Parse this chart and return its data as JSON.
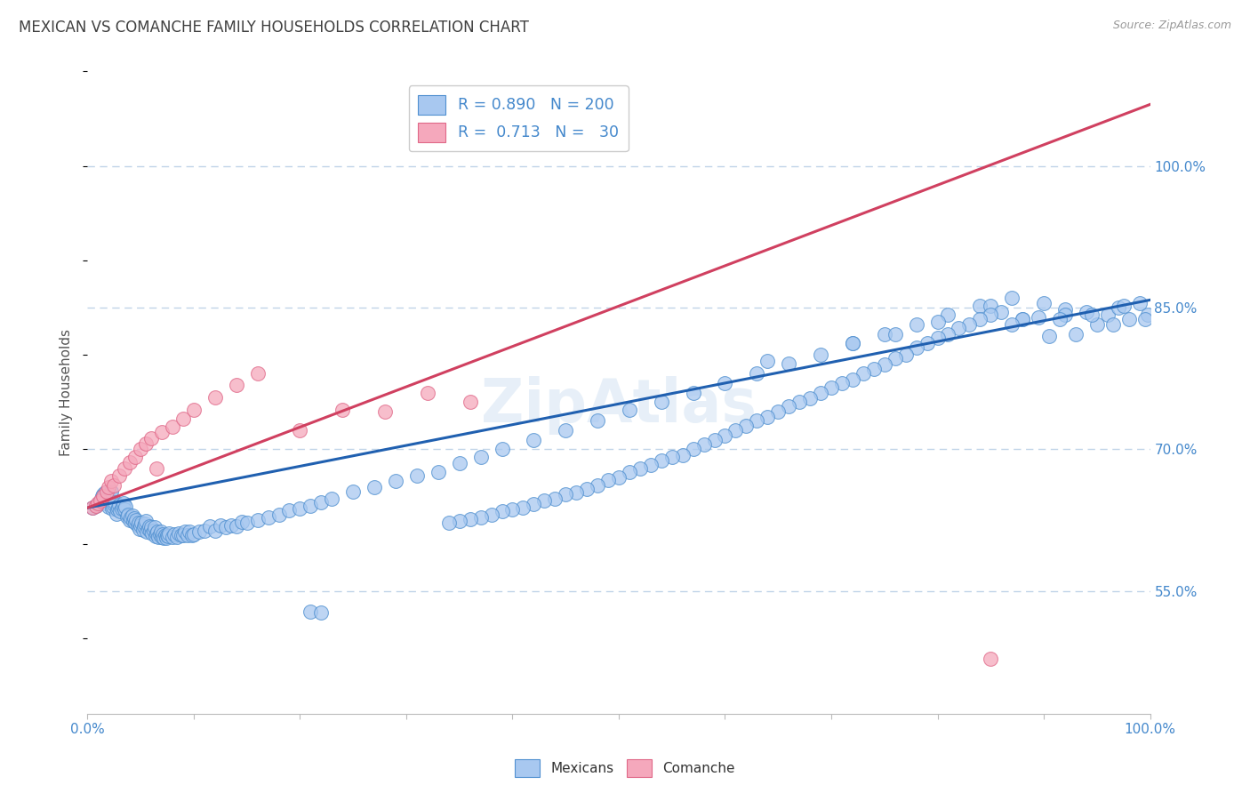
{
  "title": "MEXICAN VS COMANCHE FAMILY HOUSEHOLDS CORRELATION CHART",
  "source": "Source: ZipAtlas.com",
  "ylabel": "Family Households",
  "watermark": "ZipAtlas",
  "ytick_labels": [
    "55.0%",
    "70.0%",
    "85.0%",
    "100.0%"
  ],
  "ytick_values": [
    0.55,
    0.7,
    0.85,
    1.0
  ],
  "blue_color": "#A8C8F0",
  "pink_color": "#F5A8BC",
  "blue_edge_color": "#5090D0",
  "pink_edge_color": "#E06888",
  "blue_line_color": "#2060B0",
  "pink_line_color": "#D04060",
  "title_color": "#404040",
  "axis_color": "#4488CC",
  "grid_color": "#C0D4E8",
  "background_color": "#FFFFFF",
  "blue_line_x": [
    0.0,
    1.0
  ],
  "blue_line_y": [
    0.638,
    0.858
  ],
  "pink_line_x": [
    0.0,
    1.0
  ],
  "pink_line_y": [
    0.638,
    1.065
  ],
  "ymin": 0.42,
  "ymax": 1.1,
  "xmin": 0.0,
  "xmax": 1.0,
  "blue_x": [
    0.005,
    0.008,
    0.01,
    0.011,
    0.012,
    0.013,
    0.014,
    0.015,
    0.016,
    0.017,
    0.018,
    0.019,
    0.02,
    0.02,
    0.021,
    0.022,
    0.023,
    0.024,
    0.025,
    0.026,
    0.027,
    0.028,
    0.029,
    0.03,
    0.031,
    0.032,
    0.033,
    0.034,
    0.035,
    0.036,
    0.037,
    0.038,
    0.04,
    0.041,
    0.042,
    0.043,
    0.044,
    0.045,
    0.046,
    0.047,
    0.048,
    0.049,
    0.05,
    0.051,
    0.052,
    0.053,
    0.054,
    0.055,
    0.056,
    0.057,
    0.058,
    0.059,
    0.06,
    0.061,
    0.062,
    0.063,
    0.064,
    0.065,
    0.066,
    0.067,
    0.068,
    0.069,
    0.07,
    0.071,
    0.072,
    0.073,
    0.074,
    0.075,
    0.076,
    0.077,
    0.08,
    0.082,
    0.084,
    0.086,
    0.088,
    0.09,
    0.092,
    0.094,
    0.096,
    0.098,
    0.1,
    0.105,
    0.11,
    0.115,
    0.12,
    0.125,
    0.13,
    0.135,
    0.14,
    0.145,
    0.15,
    0.16,
    0.17,
    0.18,
    0.19,
    0.2,
    0.21,
    0.22,
    0.23,
    0.25,
    0.27,
    0.29,
    0.31,
    0.33,
    0.35,
    0.37,
    0.39,
    0.42,
    0.45,
    0.48,
    0.51,
    0.54,
    0.57,
    0.6,
    0.63,
    0.66,
    0.69,
    0.72,
    0.75,
    0.78,
    0.81,
    0.84,
    0.87,
    0.9,
    0.92,
    0.94,
    0.96,
    0.98,
    0.998,
    0.21,
    0.22,
    0.64,
    0.72,
    0.76,
    0.8,
    0.85,
    0.88,
    0.92,
    0.95,
    0.97,
    0.99,
    0.995,
    0.975,
    0.965,
    0.945,
    0.93,
    0.915,
    0.905,
    0.895,
    0.88,
    0.87,
    0.86,
    0.85,
    0.84,
    0.83,
    0.82,
    0.81,
    0.8,
    0.79,
    0.78,
    0.77,
    0.76,
    0.75,
    0.74,
    0.73,
    0.72,
    0.71,
    0.7,
    0.69,
    0.68,
    0.67,
    0.66,
    0.65,
    0.64,
    0.63,
    0.62,
    0.61,
    0.6,
    0.59,
    0.58,
    0.57,
    0.56,
    0.55,
    0.54,
    0.53,
    0.52,
    0.51,
    0.5,
    0.49,
    0.48,
    0.47,
    0.46,
    0.45,
    0.44,
    0.43,
    0.42,
    0.41,
    0.4,
    0.39,
    0.38,
    0.37,
    0.36,
    0.35,
    0.34
  ],
  "blue_y": [
    0.638,
    0.64,
    0.642,
    0.644,
    0.645,
    0.648,
    0.65,
    0.652,
    0.654,
    0.643,
    0.646,
    0.648,
    0.639,
    0.65,
    0.652,
    0.655,
    0.637,
    0.639,
    0.642,
    0.644,
    0.632,
    0.636,
    0.638,
    0.641,
    0.634,
    0.637,
    0.64,
    0.643,
    0.636,
    0.639,
    0.629,
    0.631,
    0.625,
    0.628,
    0.63,
    0.624,
    0.627,
    0.622,
    0.625,
    0.619,
    0.622,
    0.616,
    0.619,
    0.622,
    0.615,
    0.618,
    0.621,
    0.624,
    0.613,
    0.616,
    0.618,
    0.614,
    0.617,
    0.611,
    0.614,
    0.617,
    0.608,
    0.611,
    0.613,
    0.607,
    0.61,
    0.613,
    0.607,
    0.61,
    0.606,
    0.609,
    0.606,
    0.609,
    0.608,
    0.611,
    0.607,
    0.61,
    0.607,
    0.611,
    0.609,
    0.609,
    0.613,
    0.609,
    0.613,
    0.609,
    0.61,
    0.613,
    0.614,
    0.618,
    0.614,
    0.619,
    0.617,
    0.619,
    0.618,
    0.623,
    0.622,
    0.625,
    0.628,
    0.631,
    0.635,
    0.637,
    0.64,
    0.644,
    0.648,
    0.655,
    0.66,
    0.666,
    0.672,
    0.676,
    0.685,
    0.692,
    0.7,
    0.71,
    0.72,
    0.73,
    0.742,
    0.75,
    0.76,
    0.77,
    0.78,
    0.791,
    0.8,
    0.812,
    0.822,
    0.832,
    0.842,
    0.852,
    0.86,
    0.855,
    0.848,
    0.845,
    0.842,
    0.838,
    0.842,
    0.528,
    0.527,
    0.793,
    0.812,
    0.822,
    0.835,
    0.852,
    0.838,
    0.842,
    0.832,
    0.85,
    0.855,
    0.838,
    0.852,
    0.832,
    0.842,
    0.822,
    0.838,
    0.82,
    0.84,
    0.838,
    0.832,
    0.845,
    0.842,
    0.838,
    0.832,
    0.828,
    0.822,
    0.818,
    0.812,
    0.808,
    0.8,
    0.796,
    0.79,
    0.785,
    0.78,
    0.774,
    0.77,
    0.765,
    0.76,
    0.754,
    0.75,
    0.745,
    0.74,
    0.734,
    0.73,
    0.725,
    0.72,
    0.714,
    0.71,
    0.705,
    0.7,
    0.694,
    0.692,
    0.688,
    0.683,
    0.68,
    0.676,
    0.67,
    0.667,
    0.662,
    0.658,
    0.654,
    0.652,
    0.648,
    0.646,
    0.642,
    0.638,
    0.636,
    0.634,
    0.631,
    0.628,
    0.626,
    0.624,
    0.622
  ],
  "pink_x": [
    0.005,
    0.008,
    0.01,
    0.012,
    0.015,
    0.018,
    0.02,
    0.022,
    0.025,
    0.03,
    0.035,
    0.04,
    0.045,
    0.05,
    0.055,
    0.06,
    0.065,
    0.07,
    0.08,
    0.09,
    0.1,
    0.12,
    0.14,
    0.16,
    0.2,
    0.24,
    0.28,
    0.32,
    0.36,
    0.85
  ],
  "pink_y": [
    0.638,
    0.64,
    0.643,
    0.646,
    0.65,
    0.655,
    0.66,
    0.666,
    0.662,
    0.672,
    0.68,
    0.686,
    0.692,
    0.7,
    0.706,
    0.712,
    0.68,
    0.718,
    0.724,
    0.732,
    0.742,
    0.755,
    0.768,
    0.78,
    0.72,
    0.742,
    0.74,
    0.76,
    0.75,
    0.478
  ]
}
